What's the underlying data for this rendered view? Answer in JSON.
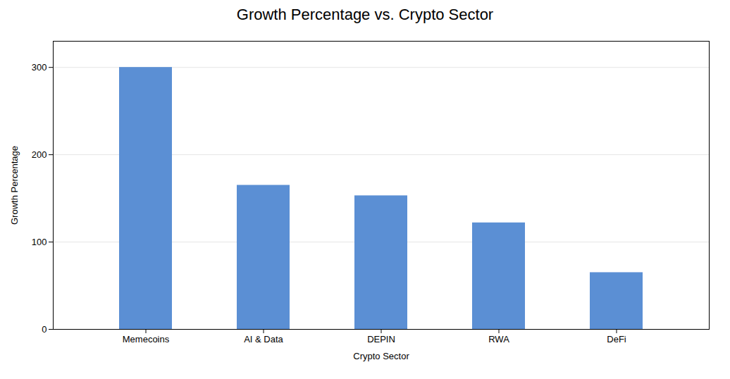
{
  "chart_data": {
    "type": "bar",
    "title": "Growth Percentage vs. Crypto Sector",
    "xlabel": "Crypto Sector",
    "ylabel": "Growth Percentage",
    "categories": [
      "Memecoins",
      "AI & Data",
      "DEPIN",
      "RWA",
      "DeFi"
    ],
    "values": [
      300,
      165,
      153,
      122,
      65
    ],
    "color": "#5B8FD4",
    "ylim": [
      0,
      330
    ],
    "yticks": [
      0,
      100,
      200,
      300
    ],
    "grid": true
  }
}
